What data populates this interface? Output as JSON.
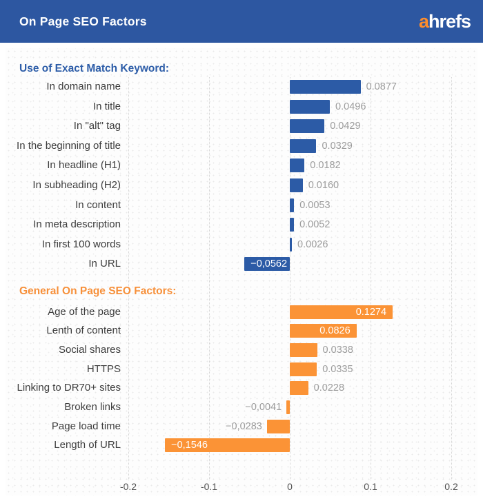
{
  "header": {
    "title": "On Page SEO Factors",
    "logo_a": "a",
    "logo_rest": "hrefs"
  },
  "colors": {
    "header_bg": "#2d57a1",
    "blue_bar": "#2c5ba6",
    "orange_bar": "#fb9336",
    "logo_orange": "#fd8d2c",
    "value_gray": "#9c9c9c",
    "row_label": "#3d3d3d",
    "grid": "#d4d4d4"
  },
  "chart_data": {
    "type": "bar",
    "orientation": "horizontal",
    "title": "On Page SEO Factors",
    "xlabel": "",
    "ylabel": "",
    "xlim": [
      -0.23,
      0.24
    ],
    "grid": "dotted-vertical",
    "axis": {
      "ticks": [
        -0.2,
        -0.1,
        0,
        0.1,
        0.2
      ],
      "tick_labels": [
        "-0.2",
        "-0.1",
        "0",
        "0.1",
        "0.2"
      ]
    },
    "sections": [
      {
        "heading": "Use of Exact Match Keyword:",
        "heading_color": "#2d5da8",
        "bar_color": "#2c5ba6",
        "rows": [
          {
            "label": "In domain name",
            "value": 0.0877,
            "display": "0.0877"
          },
          {
            "label": "In title",
            "value": 0.0496,
            "display": "0.0496"
          },
          {
            "label": "In \"alt\" tag",
            "value": 0.0429,
            "display": "0.0429"
          },
          {
            "label": "In the beginning of title",
            "value": 0.0329,
            "display": "0.0329"
          },
          {
            "label": "In headline (H1)",
            "value": 0.0182,
            "display": "0.0182"
          },
          {
            "label": "In subheading (H2)",
            "value": 0.016,
            "display": "0.0160"
          },
          {
            "label": "In content",
            "value": 0.0053,
            "display": "0.0053"
          },
          {
            "label": "In meta description",
            "value": 0.0052,
            "display": "0.0052"
          },
          {
            "label": "In first 100 words",
            "value": 0.0026,
            "display": "0.0026"
          },
          {
            "label": "In URL",
            "value": -0.0562,
            "display": "−0,0562",
            "label_inside": true
          }
        ]
      },
      {
        "heading": "General On Page SEO Factors:",
        "heading_color": "#f7903a",
        "bar_color": "#fb9336",
        "rows": [
          {
            "label": "Age of the page",
            "value": 0.1274,
            "display": "0.1274",
            "label_inside": true
          },
          {
            "label": "Lenth of content",
            "value": 0.0826,
            "display": "0.0826",
            "label_inside": true
          },
          {
            "label": "Social shares",
            "value": 0.0338,
            "display": "0.0338"
          },
          {
            "label": "HTTPS",
            "value": 0.0335,
            "display": "0.0335"
          },
          {
            "label": "Linking to DR70+ sites",
            "value": 0.0228,
            "display": "0.0228"
          },
          {
            "label": "Broken links",
            "value": -0.0041,
            "display": "−0,0041"
          },
          {
            "label": "Page load time",
            "value": -0.0283,
            "display": "−0,0283"
          },
          {
            "label": "Length of URL",
            "value": -0.1546,
            "display": "−0,1546",
            "label_inside": true
          }
        ]
      }
    ]
  }
}
